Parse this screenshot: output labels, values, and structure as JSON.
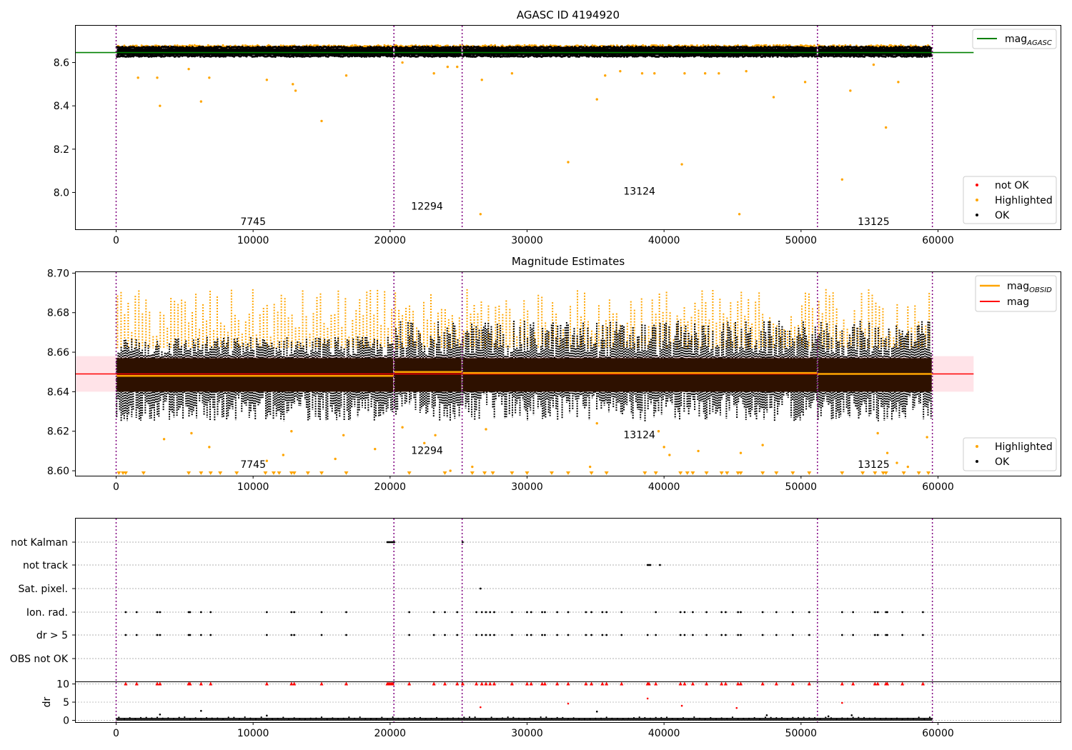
{
  "colors": {
    "ok": "#000000",
    "highlighted": "#ffa500",
    "not_ok": "#ff0000",
    "agasc_line": "#008000",
    "mag_line": "#ff0000",
    "obsid_line": "#ffa500",
    "obsid_sep": "#800080",
    "band": "#ffc0cb",
    "dense": "#2e1100"
  },
  "chart_data": [
    {
      "type": "scatter",
      "title": "AGASC ID 4194920",
      "xlim": [
        -3000,
        69000
      ],
      "ylim": [
        7.83,
        8.77
      ],
      "yticks": [
        "8.0",
        "8.2",
        "8.4",
        "8.6"
      ],
      "ytick_values": [
        8.0,
        8.2,
        8.4,
        8.6
      ],
      "xticks": [
        "0",
        "10000",
        "20000",
        "30000",
        "40000",
        "50000",
        "60000"
      ],
      "xtick_values": [
        0,
        10000,
        20000,
        30000,
        40000,
        50000,
        60000
      ],
      "mag_agasc": 8.646,
      "legend_top": [
        "mag_AGASC"
      ],
      "legend_bottom": [
        "not OK",
        "Highlighted",
        "OK"
      ],
      "obsid_boundaries": [
        0,
        20280,
        25260,
        51200,
        59590
      ],
      "obsids": [
        {
          "label": "7745",
          "x": 10000,
          "y": 7.85
        },
        {
          "label": "12294",
          "x": 22700,
          "y": 7.92
        },
        {
          "label": "13124",
          "x": 38200,
          "y": 7.99
        },
        {
          "label": "13125",
          "x": 55300,
          "y": 7.85
        }
      ],
      "dense_band": {
        "y_low": 8.635,
        "y_high": 8.665
      },
      "outliers_highlighted": [
        [
          1600,
          8.53
        ],
        [
          3000,
          8.53
        ],
        [
          3200,
          8.4
        ],
        [
          5300,
          8.57
        ],
        [
          6200,
          8.42
        ],
        [
          6800,
          8.53
        ],
        [
          11000,
          8.52
        ],
        [
          12900,
          8.5
        ],
        [
          13100,
          8.47
        ],
        [
          15000,
          8.33
        ],
        [
          16800,
          8.54
        ],
        [
          20900,
          8.6
        ],
        [
          23200,
          8.55
        ],
        [
          24200,
          8.58
        ],
        [
          24900,
          8.58
        ],
        [
          26600,
          7.9
        ],
        [
          26700,
          8.52
        ],
        [
          28900,
          8.55
        ],
        [
          33000,
          8.14
        ],
        [
          35100,
          8.43
        ],
        [
          35700,
          8.54
        ],
        [
          36800,
          8.56
        ],
        [
          38400,
          8.55
        ],
        [
          39300,
          8.55
        ],
        [
          41300,
          8.13
        ],
        [
          41500,
          8.55
        ],
        [
          43000,
          8.55
        ],
        [
          44000,
          8.55
        ],
        [
          45500,
          7.9
        ],
        [
          46000,
          8.56
        ],
        [
          48000,
          8.44
        ],
        [
          50300,
          8.51
        ],
        [
          53000,
          8.06
        ],
        [
          53600,
          8.47
        ],
        [
          55300,
          8.59
        ],
        [
          56200,
          8.3
        ],
        [
          57100,
          8.51
        ]
      ],
      "near_band_highlighted_y": 8.68
    },
    {
      "type": "scatter",
      "title": "Magnitude Estimates",
      "xlim": [
        -3000,
        69000
      ],
      "ylim": [
        8.5975,
        8.7005
      ],
      "yticks": [
        "8.60",
        "8.62",
        "8.64",
        "8.66",
        "8.68",
        "8.70"
      ],
      "ytick_values": [
        8.6,
        8.62,
        8.64,
        8.66,
        8.68,
        8.7
      ],
      "xticks": [
        "0",
        "10000",
        "20000",
        "30000",
        "40000",
        "50000",
        "60000"
      ],
      "xtick_values": [
        0,
        10000,
        20000,
        30000,
        40000,
        50000,
        60000
      ],
      "mag": 8.649,
      "mag_band": [
        8.64,
        8.658
      ],
      "mag_obsid": [
        {
          "x0": 0,
          "x1": 20280,
          "y": 8.648
        },
        {
          "x0": 20280,
          "x1": 25260,
          "y": 8.65
        },
        {
          "x0": 25260,
          "x1": 51200,
          "y": 8.6495
        },
        {
          "x0": 51200,
          "x1": 59590,
          "y": 8.649
        }
      ],
      "legend_top": [
        "mag_OBSID",
        "mag"
      ],
      "legend_bottom": [
        "Highlighted",
        "OK"
      ],
      "obsid_boundaries": [
        0,
        20280,
        25260,
        51200,
        59590
      ],
      "obsids": [
        {
          "label": "7745",
          "x": 10000,
          "y": 8.6015
        },
        {
          "label": "12294",
          "x": 22700,
          "y": 8.6085
        },
        {
          "label": "13124",
          "x": 38200,
          "y": 8.6165
        },
        {
          "label": "13125",
          "x": 55300,
          "y": 8.6015
        }
      ],
      "dense_band": {
        "y_low": 8.64,
        "y_high": 8.657
      },
      "ok_spread": {
        "y_low": 8.625,
        "y_high": 8.676
      },
      "highlighted_spread": {
        "y_low": 8.666,
        "y_high": 8.692
      },
      "floor_markers_x": [
        200,
        500,
        700,
        2000,
        5300,
        6200,
        6900,
        7600,
        8800,
        10900,
        11500,
        11900,
        12800,
        13000,
        14000,
        15000,
        16800,
        21400,
        24000,
        26000,
        26900,
        27500,
        28900,
        30000,
        31800,
        33000,
        34700,
        35800,
        38600,
        39400,
        41200,
        41700,
        42100,
        43100,
        44200,
        44600,
        45400,
        45600,
        47200,
        48200,
        49400,
        50600,
        53000,
        54500,
        55400,
        56000,
        56200,
        57500,
        58600,
        59300
      ],
      "scattered_highlighted": [
        [
          3500,
          8.616
        ],
        [
          5500,
          8.619
        ],
        [
          6800,
          8.612
        ],
        [
          11000,
          8.605
        ],
        [
          12200,
          8.608
        ],
        [
          12800,
          8.62
        ],
        [
          16000,
          8.606
        ],
        [
          16600,
          8.618
        ],
        [
          18900,
          8.611
        ],
        [
          20900,
          8.622
        ],
        [
          22500,
          8.614
        ],
        [
          23300,
          8.618
        ],
        [
          24400,
          8.6
        ],
        [
          26000,
          8.602
        ],
        [
          27000,
          8.621
        ],
        [
          34600,
          8.602
        ],
        [
          35100,
          8.624
        ],
        [
          39600,
          8.62
        ],
        [
          40000,
          8.612
        ],
        [
          40400,
          8.608
        ],
        [
          42500,
          8.61
        ],
        [
          45600,
          8.609
        ],
        [
          47200,
          8.613
        ],
        [
          55600,
          8.619
        ],
        [
          56300,
          8.609
        ],
        [
          57000,
          8.604
        ],
        [
          57800,
          8.602
        ],
        [
          59200,
          8.617
        ]
      ]
    },
    {
      "type": "scatter",
      "xlim": [
        -3000,
        69000
      ],
      "categories": [
        "not Kalman",
        "not track",
        "Sat. pixel.",
        "Ion. rad.",
        "dr > 5",
        "OBS not OK"
      ],
      "obsid_boundaries": [
        0,
        20280,
        25260,
        51200,
        59590
      ],
      "events": {
        "not Kalman": [
          19800,
          19900,
          20000,
          20100,
          20200,
          20300,
          25300
        ],
        "not track": [
          38800,
          38900,
          39000,
          39700
        ],
        "Sat. pixel.": [
          26600
        ],
        "Ion. rad.": [
          700,
          1500,
          3000,
          3200,
          5300,
          5400,
          6200,
          6900,
          11000,
          12800,
          13000,
          15000,
          16800,
          21400,
          23200,
          24000,
          24900,
          26300,
          26700,
          27000,
          27300,
          27600,
          28900,
          30000,
          30300,
          31100,
          31300,
          32200,
          33000,
          34300,
          34700,
          35500,
          35800,
          36900,
          39400,
          41200,
          41500,
          42100,
          43100,
          44200,
          44500,
          45400,
          45600,
          47200,
          48200,
          49400,
          50600,
          53000,
          53800,
          55400,
          55600,
          56200,
          56300,
          57400,
          58900
        ],
        "dr > 5": [
          700,
          1500,
          3000,
          3200,
          5300,
          5400,
          6200,
          6900,
          11000,
          12800,
          13000,
          15000,
          16800,
          21400,
          23200,
          24000,
          24900,
          26300,
          26700,
          27000,
          27300,
          27600,
          28900,
          30000,
          30300,
          31100,
          31300,
          32200,
          33000,
          34300,
          34700,
          35500,
          35800,
          36900,
          38800,
          39400,
          41200,
          41500,
          42100,
          43100,
          44200,
          44500,
          45400,
          45600,
          47200,
          48200,
          49400,
          50600,
          53000,
          53800,
          55400,
          55600,
          56200,
          56300,
          57400,
          58900
        ],
        "OBS not OK": []
      }
    },
    {
      "type": "scatter",
      "ylabel": "dr",
      "xlim": [
        -3000,
        69000
      ],
      "ylim": [
        -0.5,
        10.5
      ],
      "yticks": [
        "0",
        "5",
        "10"
      ],
      "ytick_values": [
        0,
        5,
        10
      ],
      "xticks": [
        "0",
        "10000",
        "20000",
        "30000",
        "40000",
        "50000",
        "60000"
      ],
      "xtick_values": [
        0,
        10000,
        20000,
        30000,
        40000,
        50000,
        60000
      ],
      "obsid_boundaries": [
        0,
        20280,
        25260,
        51200,
        59590
      ],
      "capped_x": [
        700,
        1500,
        3000,
        3200,
        5300,
        5400,
        6200,
        6900,
        11000,
        12800,
        13000,
        15000,
        16800,
        19800,
        19900,
        20000,
        20100,
        20200,
        21400,
        23200,
        24000,
        24900,
        25300,
        26300,
        26700,
        27000,
        27300,
        27600,
        28900,
        30000,
        30300,
        31100,
        31300,
        32200,
        33000,
        34300,
        34700,
        35500,
        35800,
        36900,
        38800,
        38900,
        39400,
        41200,
        41500,
        42100,
        43100,
        44200,
        44500,
        45400,
        45600,
        47200,
        48200,
        49400,
        50600,
        53000,
        53800,
        55400,
        55600,
        56200,
        56300,
        57400,
        58900
      ],
      "red_points": [
        [
          26600,
          3.6
        ],
        [
          33000,
          4.6
        ],
        [
          38800,
          6.0
        ],
        [
          41300,
          4.0
        ],
        [
          45300,
          3.4
        ],
        [
          53000,
          4.8
        ]
      ],
      "black_points": [
        [
          3200,
          1.6
        ],
        [
          6200,
          2.6
        ],
        [
          11000,
          1.3
        ],
        [
          35100,
          2.4
        ],
        [
          47500,
          1.4
        ],
        [
          52000,
          1.1
        ],
        [
          53700,
          1.4
        ]
      ],
      "baseline_y": 0.3
    }
  ]
}
